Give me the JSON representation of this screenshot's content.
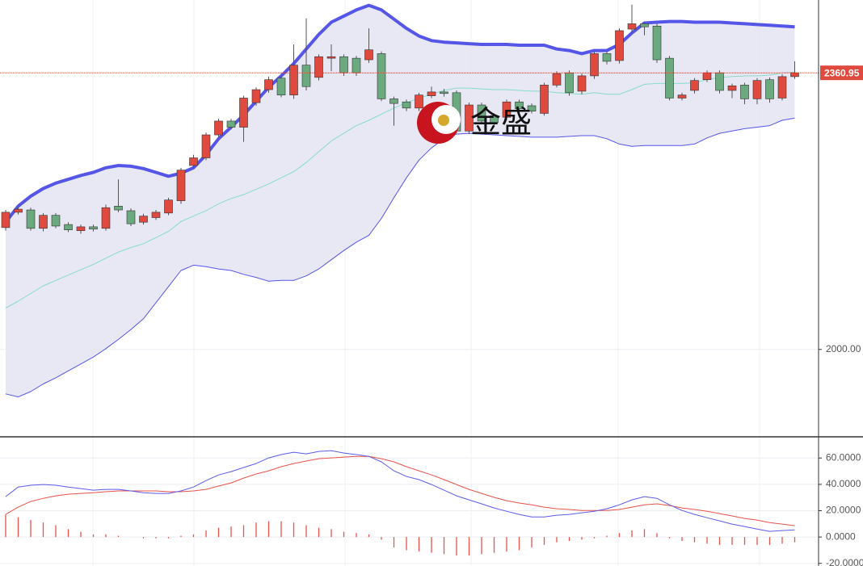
{
  "chart_data": [
    {
      "type": "candlestick",
      "ylim": [
        1887,
        2456
      ],
      "yticks": [
        {
          "value": 2000,
          "label": "2000.00"
        }
      ],
      "grid": true,
      "last_price": {
        "value": 2360.95,
        "label": "2360.95"
      },
      "watermark": "金盛",
      "colors": {
        "up": "#e0493e",
        "down": "#6aaa7e",
        "band_fill": "#e4e4f2",
        "upper": "#5555e8",
        "middle": "#86dcc6",
        "lower": "#5555e8",
        "last_price": "#e0493e"
      },
      "open": [
        2159,
        2179,
        2182,
        2158,
        2175,
        2163,
        2155,
        2160,
        2158,
        2187,
        2181,
        2166,
        2172,
        2178,
        2194,
        2240,
        2250,
        2280,
        2298,
        2290,
        2322,
        2339,
        2354,
        2332,
        2371,
        2355,
        2380,
        2382,
        2380,
        2378,
        2386,
        2327,
        2323,
        2315,
        2331,
        2336,
        2335,
        2285,
        2319,
        2305,
        2303,
        2323,
        2318,
        2308,
        2345,
        2361,
        2337,
        2357,
        2386,
        2377,
        2418,
        2425,
        2422,
        2380,
        2328,
        2338,
        2352,
        2361,
        2338,
        2345,
        2327,
        2352,
        2328,
        2356
      ],
      "high": [
        2182,
        2186,
        2185,
        2178,
        2178,
        2166,
        2163,
        2163,
        2189,
        2222,
        2184,
        2177,
        2182,
        2198,
        2237,
        2254,
        2283,
        2301,
        2301,
        2331,
        2342,
        2356,
        2357,
        2398,
        2432,
        2385,
        2398,
        2385,
        2383,
        2419,
        2389,
        2330,
        2326,
        2335,
        2343,
        2340,
        2338,
        2322,
        2322,
        2308,
        2326,
        2326,
        2321,
        2348,
        2363,
        2364,
        2360,
        2389,
        2389,
        2419,
        2450,
        2428,
        2425,
        2383,
        2335,
        2354,
        2364,
        2364,
        2347,
        2348,
        2354,
        2355,
        2359,
        2376
      ],
      "low": [
        2155,
        2176,
        2155,
        2154,
        2158,
        2153,
        2151,
        2154,
        2155,
        2179,
        2161,
        2163,
        2169,
        2175,
        2190,
        2236,
        2247,
        2277,
        2287,
        2271,
        2318,
        2335,
        2329,
        2327,
        2338,
        2351,
        2363,
        2357,
        2357,
        2374,
        2324,
        2292,
        2311,
        2311,
        2328,
        2330,
        2282,
        2281,
        2294,
        2292,
        2299,
        2310,
        2308,
        2305,
        2342,
        2331,
        2333,
        2353,
        2372,
        2373,
        2414,
        2410,
        2374,
        2325,
        2325,
        2334,
        2349,
        2334,
        2328,
        2320,
        2320,
        2322,
        2325,
        2353
      ],
      "close": [
        2179,
        2183,
        2158,
        2175,
        2161,
        2156,
        2160,
        2157,
        2185,
        2182,
        2164,
        2174,
        2179,
        2195,
        2234,
        2250,
        2280,
        2298,
        2290,
        2328,
        2339,
        2352,
        2332,
        2371,
        2343,
        2382,
        2382,
        2361,
        2361,
        2391,
        2327,
        2321,
        2315,
        2332,
        2336,
        2334,
        2285,
        2319,
        2298,
        2296,
        2323,
        2314,
        2311,
        2345,
        2360,
        2335,
        2357,
        2386,
        2376,
        2416,
        2425,
        2421,
        2378,
        2328,
        2332,
        2351,
        2361,
        2338,
        2344,
        2327,
        2351,
        2327,
        2356,
        2361
      ],
      "bollinger_upper": [
        2166,
        2187,
        2200,
        2210,
        2217,
        2222,
        2227,
        2231,
        2237,
        2240,
        2239,
        2236,
        2231,
        2226,
        2230,
        2237,
        2254,
        2275,
        2290,
        2306,
        2324,
        2342,
        2357,
        2373,
        2392,
        2411,
        2427,
        2435,
        2443,
        2449,
        2443,
        2431,
        2419,
        2409,
        2403,
        2401,
        2400,
        2399,
        2398,
        2398,
        2398,
        2397,
        2397,
        2397,
        2392,
        2390,
        2386,
        2390,
        2390,
        2398,
        2413,
        2426,
        2427,
        2428,
        2428,
        2427,
        2427,
        2427,
        2426,
        2425,
        2424,
        2423,
        2422,
        2421
      ],
      "bollinger_middle": [
        2054,
        2063,
        2073,
        2083,
        2090,
        2097,
        2104,
        2111,
        2119,
        2127,
        2133,
        2138,
        2146,
        2154,
        2167,
        2174,
        2181,
        2190,
        2197,
        2202,
        2209,
        2216,
        2224,
        2232,
        2244,
        2258,
        2272,
        2282,
        2292,
        2299,
        2307,
        2315,
        2322,
        2328,
        2333,
        2338,
        2341,
        2341,
        2340,
        2339,
        2339,
        2338,
        2337,
        2337,
        2335,
        2334,
        2333,
        2335,
        2333,
        2333,
        2339,
        2346,
        2347,
        2347,
        2347,
        2348,
        2352,
        2355,
        2356,
        2357,
        2357,
        2358,
        2361,
        2362
      ],
      "bollinger_lower": [
        1942,
        1938,
        1945,
        1955,
        1963,
        1972,
        1981,
        1990,
        2001,
        2013,
        2026,
        2040,
        2061,
        2082,
        2103,
        2110,
        2108,
        2105,
        2103,
        2098,
        2094,
        2089,
        2090,
        2090,
        2096,
        2105,
        2117,
        2129,
        2140,
        2149,
        2171,
        2198,
        2224,
        2247,
        2263,
        2275,
        2281,
        2282,
        2281,
        2280,
        2279,
        2278,
        2277,
        2277,
        2277,
        2278,
        2279,
        2279,
        2275,
        2268,
        2265,
        2266,
        2266,
        2266,
        2266,
        2268,
        2276,
        2282,
        2285,
        2288,
        2290,
        2292,
        2299,
        2302
      ]
    },
    {
      "type": "macd",
      "ylim": [
        -22,
        75.5
      ],
      "yticks": [
        {
          "value": 60,
          "label": "60.0000"
        },
        {
          "value": 40,
          "label": "40.0000"
        },
        {
          "value": 20,
          "label": "20.0000"
        },
        {
          "value": 0,
          "label": "0.0000"
        },
        {
          "value": -20,
          "label": "-20.0000"
        }
      ],
      "grid": true,
      "colors": {
        "macd": "#5b5bea",
        "signal": "#e9524a",
        "histogram": "#e9524a"
      },
      "macd": [
        30.7,
        38.0,
        39.3,
        39.9,
        39.3,
        38.0,
        36.8,
        35.6,
        36.2,
        36.2,
        35.0,
        33.7,
        33.1,
        33.1,
        35.0,
        38.0,
        42.9,
        47.2,
        49.7,
        52.8,
        55.8,
        60.1,
        62.6,
        64.4,
        63.2,
        65.0,
        65.6,
        63.8,
        62.6,
        61.3,
        57.1,
        50.3,
        46.0,
        43.6,
        39.9,
        35.6,
        31.3,
        28.2,
        25.2,
        22.1,
        19.6,
        17.2,
        15.3,
        15.3,
        16.6,
        17.2,
        18.4,
        19.6,
        21.5,
        24.5,
        28.2,
        30.7,
        29.4,
        24.5,
        20.2,
        17.2,
        14.7,
        12.3,
        9.8,
        8.0,
        6.1,
        4.3,
        4.9,
        5.5
      ],
      "signal": [
        17.2,
        22.7,
        27.0,
        29.4,
        31.3,
        32.5,
        33.1,
        33.7,
        34.4,
        35.0,
        35.0,
        35.0,
        35.0,
        34.4,
        34.4,
        35.0,
        36.2,
        38.7,
        41.1,
        44.8,
        47.9,
        50.3,
        53.4,
        55.8,
        57.7,
        59.5,
        60.1,
        60.7,
        61.3,
        61.3,
        59.5,
        57.1,
        53.4,
        50.3,
        47.2,
        43.6,
        39.9,
        36.2,
        33.1,
        30.1,
        27.6,
        25.8,
        24.5,
        22.7,
        21.5,
        20.9,
        20.2,
        20.2,
        20.2,
        20.9,
        22.7,
        24.5,
        25.2,
        23.9,
        22.1,
        20.9,
        19.6,
        17.8,
        16.0,
        14.1,
        12.9,
        11.0,
        9.8,
        8.6
      ],
      "histogram": [
        17,
        15,
        13,
        11,
        9,
        6,
        4,
        2,
        2,
        1,
        0,
        -1,
        -1,
        -1,
        1,
        2,
        5,
        7,
        8,
        9,
        11,
        12,
        12,
        11,
        9,
        7,
        6,
        4,
        3,
        2,
        -2,
        -8,
        -10,
        -11,
        -12,
        -13,
        -14,
        -14,
        -13,
        -12,
        -11,
        -10,
        -8,
        -6,
        -4,
        -3,
        -2,
        -1,
        1,
        3,
        5,
        6,
        3,
        -1,
        -3,
        -4,
        -5,
        -6,
        -6,
        -6,
        -6,
        -6,
        -5,
        -4
      ]
    }
  ]
}
